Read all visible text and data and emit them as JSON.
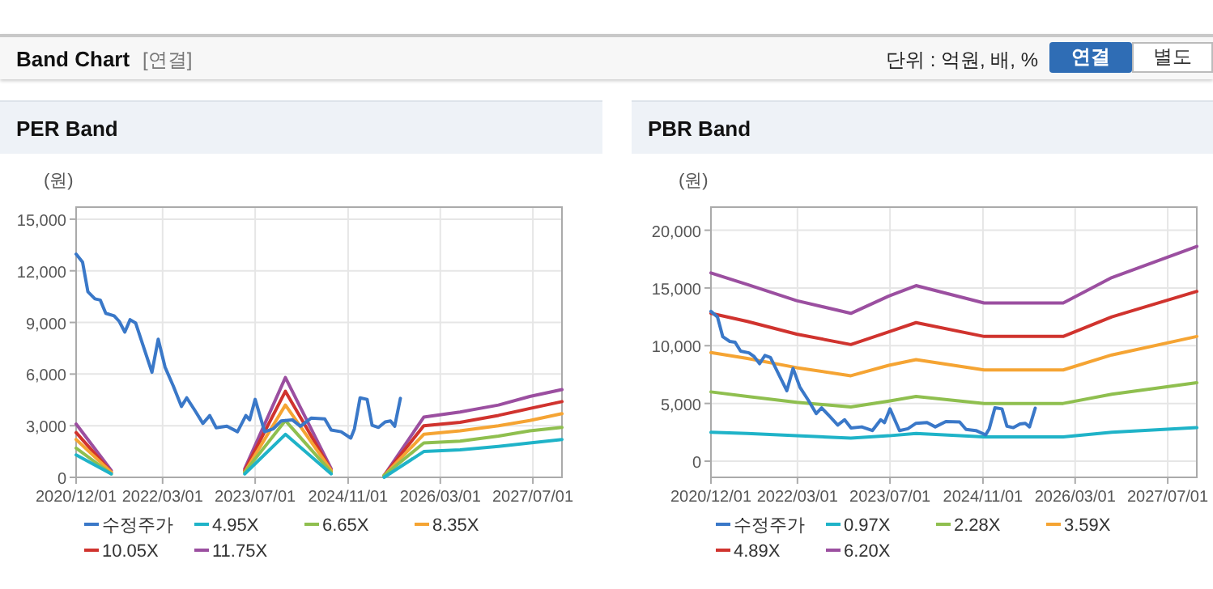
{
  "chart_data": [
    {
      "type": "line",
      "title": "PER Band",
      "ylabel": "(원)",
      "annotations": [
        "Band Chart",
        "[연결]",
        "단위 : 억원, 배, %",
        "연결",
        "별도"
      ],
      "xlim": [
        "2020-12-01",
        "2027-12-01"
      ],
      "ylim": [
        0,
        15700
      ],
      "xticks": [
        {
          "value": "2020-12-01",
          "label": "2020/12/01"
        },
        {
          "value": "2022-03-01",
          "label": "2022/03/01"
        },
        {
          "value": "2023-07-01",
          "label": "2023/07/01"
        },
        {
          "value": "2024-11-01",
          "label": "2024/11/01"
        },
        {
          "value": "2026-03-01",
          "label": "2026/03/01"
        },
        {
          "value": "2027-07-01",
          "label": "2027/07/01"
        }
      ],
      "yticks": [
        0,
        {
          "value": 3000,
          "label": "3,000"
        },
        {
          "value": 6000,
          "label": "6,000"
        },
        {
          "value": 9000,
          "label": "9,000"
        },
        {
          "value": 12000,
          "label": "12,000"
        },
        {
          "value": 15000,
          "label": "15,000"
        }
      ],
      "grid": true,
      "legend": "bottom",
      "x": [
        "2020-12-01",
        "2021-06-04",
        "2022-06-01",
        "2023-05-07",
        "2023-12-07",
        "2024-08-04",
        "2025-01-01",
        "2025-05-09",
        "2025-12-04",
        "2026-06-13",
        "2027-01-01",
        "2027-06-15",
        "2027-12-01"
      ],
      "series": [
        {
          "name": "수정주가",
          "color": "#3a78c8",
          "x": [
            "2020-12-01",
            "2021-01-04",
            "2021-02-01",
            "2021-03-10",
            "2021-04-07",
            "2021-05-06",
            "2021-06-19",
            "2021-07-16",
            "2021-08-14",
            "2021-09-11",
            "2021-10-10",
            "2021-11-23",
            "2022-01-04",
            "2022-02-06",
            "2022-03-14",
            "2022-04-26",
            "2022-06-08",
            "2022-07-06",
            "2022-08-17",
            "2022-09-29",
            "2022-11-04",
            "2022-12-08",
            "2023-02-02",
            "2023-03-30",
            "2023-05-13",
            "2023-06-02",
            "2023-07-01",
            "2023-08-20",
            "2023-10-03",
            "2023-11-15",
            "2024-01-12",
            "2024-02-24",
            "2024-04-20",
            "2024-07-01",
            "2024-08-04",
            "2024-09-25",
            "2024-11-15",
            "2024-12-04",
            "2025-01-03",
            "2025-02-09",
            "2025-03-07",
            "2025-04-10",
            "2025-05-15",
            "2025-06-12",
            "2025-07-04",
            "2025-08-03"
          ],
          "values": [
            12970,
            12500,
            10780,
            10370,
            10300,
            9530,
            9380,
            9060,
            8440,
            9160,
            8970,
            7500,
            6100,
            8030,
            6400,
            5310,
            4120,
            4620,
            3900,
            3130,
            3590,
            2880,
            2970,
            2650,
            3590,
            3340,
            4530,
            2650,
            2810,
            3280,
            3340,
            2970,
            3440,
            3400,
            2750,
            2650,
            2280,
            2810,
            4620,
            4530,
            3030,
            2900,
            3220,
            3280,
            2970,
            4590
          ]
        },
        {
          "name": "4.95X",
          "color": "#1fb3c8",
          "values": [
            1300,
            200,
            null,
            200,
            2500,
            200,
            null,
            0,
            1500,
            1600,
            1800,
            2000,
            2200
          ]
        },
        {
          "name": "6.65X",
          "color": "#8fbf4f",
          "values": [
            1700,
            200,
            null,
            300,
            3300,
            300,
            null,
            100,
            2000,
            2100,
            2400,
            2700,
            2900
          ]
        },
        {
          "name": "8.35X",
          "color": "#f5a433",
          "values": [
            2200,
            300,
            null,
            300,
            4200,
            400,
            null,
            100,
            2500,
            2700,
            3000,
            3300,
            3700
          ]
        },
        {
          "name": "10.05X",
          "color": "#d0332e",
          "values": [
            2600,
            300,
            null,
            400,
            5000,
            400,
            null,
            100,
            3000,
            3200,
            3600,
            4000,
            4400
          ]
        },
        {
          "name": "11.75X",
          "color": "#9b4fa0",
          "values": [
            3100,
            400,
            null,
            500,
            5800,
            500,
            null,
            100,
            3500,
            3800,
            4200,
            4700,
            5100
          ]
        }
      ]
    },
    {
      "type": "line",
      "title": "PBR Band",
      "ylabel": "(원)",
      "xlim": [
        "2020-12-01",
        "2027-12-01"
      ],
      "ylim": [
        -1400,
        22000
      ],
      "xticks": [
        {
          "value": "2020-12-01",
          "label": "2020/12/01"
        },
        {
          "value": "2022-03-01",
          "label": "2022/03/01"
        },
        {
          "value": "2023-07-01",
          "label": "2023/07/01"
        },
        {
          "value": "2024-11-01",
          "label": "2024/11/01"
        },
        {
          "value": "2026-03-01",
          "label": "2026/03/01"
        },
        {
          "value": "2027-07-01",
          "label": "2027/07/01"
        }
      ],
      "yticks": [
        0,
        {
          "value": 5000,
          "label": "5,000"
        },
        {
          "value": 10000,
          "label": "10,000"
        },
        {
          "value": 15000,
          "label": "15,000"
        },
        {
          "value": 20000,
          "label": "20,000"
        }
      ],
      "grid": true,
      "legend": "bottom",
      "x": [
        "2020-12-01",
        "2021-06-10",
        "2022-02-25",
        "2022-12-07",
        "2023-06-25",
        "2023-11-15",
        "2024-11-07",
        "2025-12-28",
        "2026-09-10",
        "2027-12-01"
      ],
      "series": [
        {
          "name": "수정주가",
          "color": "#3a78c8",
          "x": [
            "2020-12-01",
            "2021-01-04",
            "2021-02-01",
            "2021-03-10",
            "2021-04-07",
            "2021-05-06",
            "2021-06-19",
            "2021-07-16",
            "2021-08-14",
            "2021-09-11",
            "2021-10-10",
            "2021-11-23",
            "2022-01-04",
            "2022-02-06",
            "2022-03-14",
            "2022-04-26",
            "2022-06-08",
            "2022-07-06",
            "2022-08-17",
            "2022-09-29",
            "2022-11-04",
            "2022-12-08",
            "2023-02-02",
            "2023-03-30",
            "2023-05-13",
            "2023-06-02",
            "2023-07-01",
            "2023-08-20",
            "2023-10-03",
            "2023-11-15",
            "2024-01-12",
            "2024-02-24",
            "2024-04-20",
            "2024-07-01",
            "2024-08-04",
            "2024-09-25",
            "2024-11-15",
            "2024-12-04",
            "2025-01-03",
            "2025-02-09",
            "2025-03-07",
            "2025-04-10",
            "2025-05-15",
            "2025-06-12",
            "2025-07-04",
            "2025-08-03"
          ],
          "values": [
            12970,
            12500,
            10780,
            10370,
            10300,
            9530,
            9380,
            9060,
            8440,
            9160,
            8970,
            7500,
            6100,
            8030,
            6400,
            5310,
            4120,
            4620,
            3900,
            3130,
            3590,
            2880,
            2970,
            2650,
            3590,
            3340,
            4530,
            2650,
            2810,
            3280,
            3340,
            2970,
            3440,
            3400,
            2750,
            2650,
            2280,
            2810,
            4620,
            4530,
            3030,
            2900,
            3220,
            3280,
            2970,
            4590
          ]
        },
        {
          "name": "0.97X",
          "color": "#1fb3c8",
          "values": [
            2500,
            2400,
            2200,
            2000,
            2200,
            2400,
            2100,
            2100,
            2500,
            2900
          ]
        },
        {
          "name": "2.28X",
          "color": "#8fbf4f",
          "values": [
            6000,
            5600,
            5100,
            4700,
            5200,
            5600,
            5000,
            5000,
            5800,
            6800
          ]
        },
        {
          "name": "3.59X",
          "color": "#f5a433",
          "values": [
            9400,
            8900,
            8100,
            7400,
            8300,
            8800,
            7900,
            7900,
            9200,
            10800
          ]
        },
        {
          "name": "4.89X",
          "color": "#d0332e",
          "values": [
            12800,
            12100,
            11000,
            10100,
            11200,
            12000,
            10800,
            10800,
            12500,
            14700
          ]
        },
        {
          "name": "6.20X",
          "color": "#9b4fa0",
          "values": [
            16300,
            15300,
            13900,
            12800,
            14300,
            15200,
            13700,
            13700,
            15900,
            18600
          ]
        }
      ]
    }
  ]
}
